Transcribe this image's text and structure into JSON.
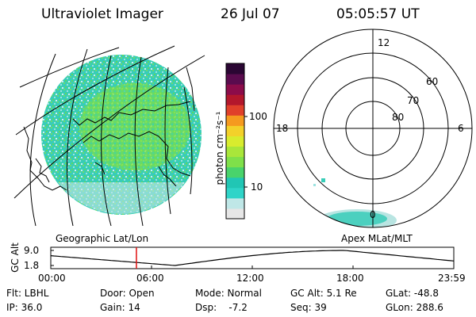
{
  "header": {
    "instrument": "Ultraviolet Imager",
    "date": "26 Jul 07",
    "time": "05:05:57 UT"
  },
  "colorbar": {
    "label": "photon cm⁻²s⁻¹",
    "ticks": [
      "100",
      "10"
    ],
    "colors": [
      "#e6e6e6",
      "#bfe7e7",
      "#2fd4c8",
      "#21c6b4",
      "#49d36b",
      "#7fe04a",
      "#a9e63a",
      "#d8ec2e",
      "#f3d12a",
      "#f59a1f",
      "#e0402a",
      "#b3172c",
      "#8c0c4a",
      "#5a0b4e",
      "#2a0633"
    ]
  },
  "polar": {
    "hour_labels": {
      "top": "12",
      "left": "18",
      "right": "6",
      "bottom": "0"
    },
    "lat_labels": [
      "60",
      "70",
      "80"
    ]
  },
  "map_caption": "Geographic Lat/Lon",
  "polar_caption": "Apex MLat/MLT",
  "altitude_plot": {
    "ylabel": "GC Alt",
    "yticks": [
      "9.0",
      "1.8"
    ],
    "xticks": [
      "00:00",
      "06:00",
      "12:00",
      "18:00",
      "23:59"
    ],
    "marker_time_hours": 5.1
  },
  "info": {
    "row1": [
      "Flt: LBHL",
      "Door: Open",
      "Mode: Normal",
      "GC Alt: 5.1 Re",
      "GLat: -48.8"
    ],
    "row2": [
      "IP: 36.0",
      "Gain: 14",
      "Dsp:    -7.2",
      "Seq: 39",
      "GLon: 288.6"
    ]
  }
}
